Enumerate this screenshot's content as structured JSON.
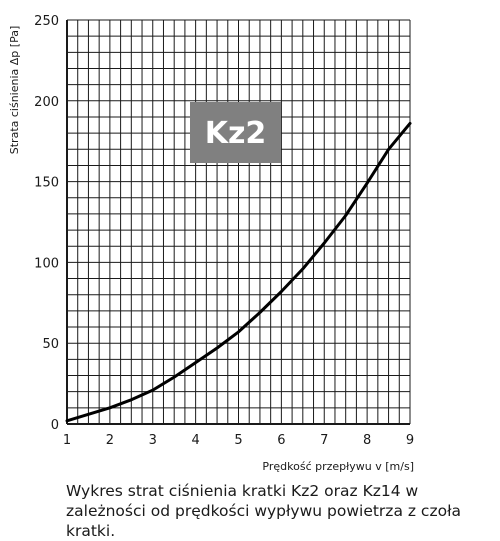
{
  "chart_data": {
    "type": "line",
    "title": "",
    "badge": "Kz2",
    "xlabel": "Prędkość przepływu v [m/s]",
    "ylabel": "Strata ciśnienia Δp [Pa]",
    "xlim": [
      1,
      9
    ],
    "ylim": [
      0,
      250
    ],
    "x_ticks": [
      1,
      2,
      3,
      4,
      5,
      6,
      7,
      8,
      9
    ],
    "y_ticks": [
      0,
      50,
      100,
      150,
      200,
      250
    ],
    "grid": true,
    "series": [
      {
        "x": [
          1,
          1.5,
          2,
          2.5,
          3,
          3.5,
          4,
          4.5,
          5,
          5.5,
          6,
          6.5,
          7,
          7.5,
          8,
          8.5,
          9
        ],
        "y": [
          2,
          6,
          10,
          15,
          21,
          29,
          38,
          47,
          57,
          69,
          82,
          96,
          112,
          129,
          149,
          170,
          186
        ]
      }
    ],
    "colors": {
      "line": "#000000",
      "grid": "#1a1a1a",
      "badge_bg": "#808080"
    }
  },
  "caption": "Wykres strat ciśnienia kratki Kz2 oraz Kz14 w zależności od prędkości wypływu powietrza z czoła kratki."
}
